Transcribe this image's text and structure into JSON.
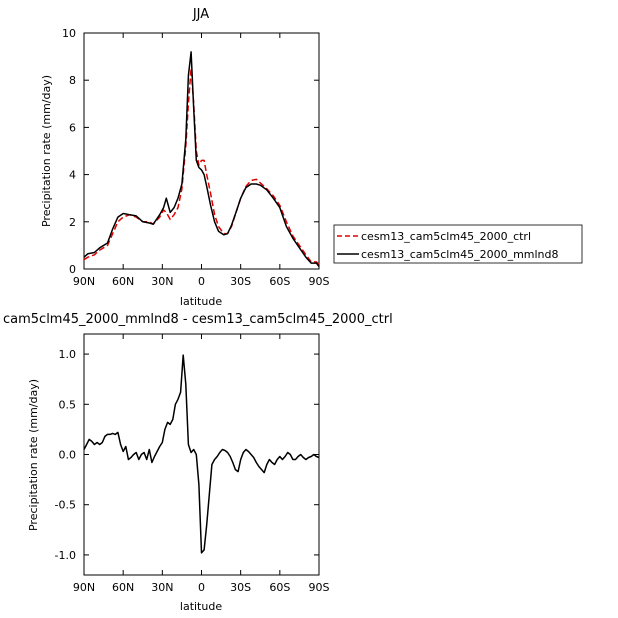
{
  "chart_data": [
    {
      "type": "line",
      "title": "JJA",
      "xlabel": "latitude",
      "ylabel": "Precipitation rate (mm/day)",
      "xlim": [
        90,
        -90
      ],
      "ylim": [
        0,
        10
      ],
      "xticks": [
        90,
        60,
        30,
        0,
        -30,
        -60,
        -90
      ],
      "xtick_labels": [
        "90N",
        "60N",
        "30N",
        "0",
        "30S",
        "60S",
        "90S"
      ],
      "yticks": [
        0,
        2,
        4,
        6,
        8,
        10
      ],
      "ytick_labels": [
        "0",
        "2",
        "4",
        "6",
        "8",
        "10"
      ],
      "legend_position": "right, outside plot",
      "series": [
        {
          "name": "cesm13_cam5clm45_2000_ctrl",
          "color": "#e00000",
          "style": "dashed",
          "x": [
            90,
            87,
            82,
            78,
            72,
            68,
            64,
            60,
            55,
            50,
            45,
            40,
            37,
            32,
            29,
            27,
            24,
            21,
            18,
            15,
            12,
            10,
            8,
            6,
            4,
            2,
            0,
            -2,
            -4,
            -7,
            -10,
            -13,
            -17,
            -20,
            -23,
            -27,
            -30,
            -34,
            -38,
            -42,
            -45,
            -50,
            -55,
            -60,
            -65,
            -70,
            -75,
            -80,
            -84,
            -88,
            -90
          ],
          "y": [
            0.4,
            0.5,
            0.6,
            0.8,
            1.0,
            1.5,
            2.0,
            2.2,
            2.3,
            2.2,
            2.0,
            2.0,
            1.9,
            2.2,
            2.5,
            2.4,
            2.1,
            2.3,
            2.6,
            3.4,
            5.2,
            7.0,
            8.5,
            7.0,
            5.0,
            4.4,
            4.6,
            4.6,
            4.0,
            3.2,
            2.3,
            1.8,
            1.5,
            1.5,
            1.8,
            2.5,
            3.0,
            3.5,
            3.75,
            3.8,
            3.65,
            3.4,
            3.1,
            2.7,
            2.0,
            1.4,
            1.0,
            0.6,
            0.3,
            0.3,
            0.2
          ]
        },
        {
          "name": "cesm13_cam5clm45_2000_mmlnd8",
          "color": "#000000",
          "style": "solid",
          "x": [
            90,
            87,
            82,
            78,
            72,
            68,
            64,
            60,
            55,
            50,
            45,
            40,
            37,
            32,
            29,
            27,
            24,
            21,
            18,
            15,
            12,
            10,
            8,
            6,
            4,
            2,
            0,
            -2,
            -4,
            -7,
            -10,
            -13,
            -17,
            -20,
            -23,
            -27,
            -30,
            -34,
            -38,
            -42,
            -45,
            -50,
            -55,
            -60,
            -65,
            -70,
            -75,
            -80,
            -84,
            -88,
            -90
          ],
          "y": [
            0.5,
            0.65,
            0.7,
            0.9,
            1.1,
            1.7,
            2.2,
            2.35,
            2.3,
            2.25,
            2.0,
            1.95,
            1.9,
            2.3,
            2.6,
            3.0,
            2.4,
            2.6,
            3.0,
            3.6,
            5.5,
            8.2,
            9.2,
            6.8,
            4.6,
            4.3,
            4.2,
            4.0,
            3.5,
            2.7,
            2.0,
            1.6,
            1.45,
            1.5,
            1.85,
            2.5,
            3.0,
            3.45,
            3.6,
            3.6,
            3.55,
            3.35,
            3.0,
            2.6,
            1.8,
            1.3,
            0.9,
            0.5,
            0.25,
            0.25,
            0.1
          ]
        }
      ]
    },
    {
      "type": "line",
      "title": "cam5clm45_2000_mmlnd8 - cesm13_cam5clm45_2000_ctrl",
      "xlabel": "latitude",
      "ylabel": "Precipitation rate (mm/day)",
      "xlim": [
        90,
        -90
      ],
      "ylim": [
        -1.2,
        1.2
      ],
      "xticks": [
        90,
        60,
        30,
        0,
        -30,
        -60,
        -90
      ],
      "xtick_labels": [
        "90N",
        "60N",
        "30N",
        "0",
        "30S",
        "60S",
        "90S"
      ],
      "yticks": [
        1.0,
        0.5,
        0.0,
        -0.5,
        -1.0
      ],
      "ytick_labels": [
        "1.0",
        "0.5",
        "0.0",
        "-0.5",
        "-1.0"
      ],
      "series": [
        {
          "color": "#000000",
          "style": "solid",
          "x": [
            90,
            88,
            86,
            84,
            82,
            80,
            78,
            76,
            74,
            72,
            70,
            68,
            66,
            64,
            62,
            60,
            58,
            56,
            54,
            52,
            50,
            48,
            46,
            44,
            42,
            40,
            38,
            36,
            34,
            32,
            30,
            28,
            26,
            24,
            22,
            20,
            18,
            16,
            14,
            12,
            10,
            8,
            6,
            4,
            2,
            0,
            -2,
            -4,
            -6,
            -8,
            -10,
            -12,
            -14,
            -16,
            -18,
            -20,
            -22,
            -24,
            -26,
            -28,
            -30,
            -32,
            -34,
            -36,
            -38,
            -40,
            -42,
            -44,
            -46,
            -48,
            -50,
            -52,
            -54,
            -56,
            -58,
            -60,
            -62,
            -64,
            -66,
            -68,
            -70,
            -72,
            -74,
            -76,
            -78,
            -80,
            -82,
            -84,
            -86,
            -88,
            -90
          ],
          "y": [
            0.05,
            0.1,
            0.15,
            0.13,
            0.1,
            0.12,
            0.1,
            0.12,
            0.18,
            0.2,
            0.2,
            0.21,
            0.2,
            0.22,
            0.1,
            0.03,
            0.08,
            -0.05,
            -0.03,
            0.0,
            0.02,
            -0.05,
            0.0,
            0.02,
            -0.05,
            0.05,
            -0.08,
            -0.02,
            0.03,
            0.08,
            0.12,
            0.25,
            0.32,
            0.3,
            0.35,
            0.5,
            0.55,
            0.62,
            0.99,
            0.7,
            0.1,
            0.02,
            0.05,
            0.0,
            -0.3,
            -0.98,
            -0.95,
            -0.7,
            -0.4,
            -0.1,
            -0.05,
            -0.02,
            0.02,
            0.05,
            0.04,
            0.02,
            -0.02,
            -0.08,
            -0.15,
            -0.17,
            -0.05,
            0.02,
            0.05,
            0.03,
            0.0,
            -0.03,
            -0.08,
            -0.12,
            -0.15,
            -0.18,
            -0.1,
            -0.05,
            -0.08,
            -0.1,
            -0.05,
            -0.02,
            -0.05,
            -0.02,
            0.02,
            0.0,
            -0.05,
            -0.05,
            -0.02,
            0.0,
            -0.03,
            -0.05,
            -0.03,
            -0.02,
            0.0,
            -0.02,
            -0.03
          ]
        }
      ]
    }
  ]
}
